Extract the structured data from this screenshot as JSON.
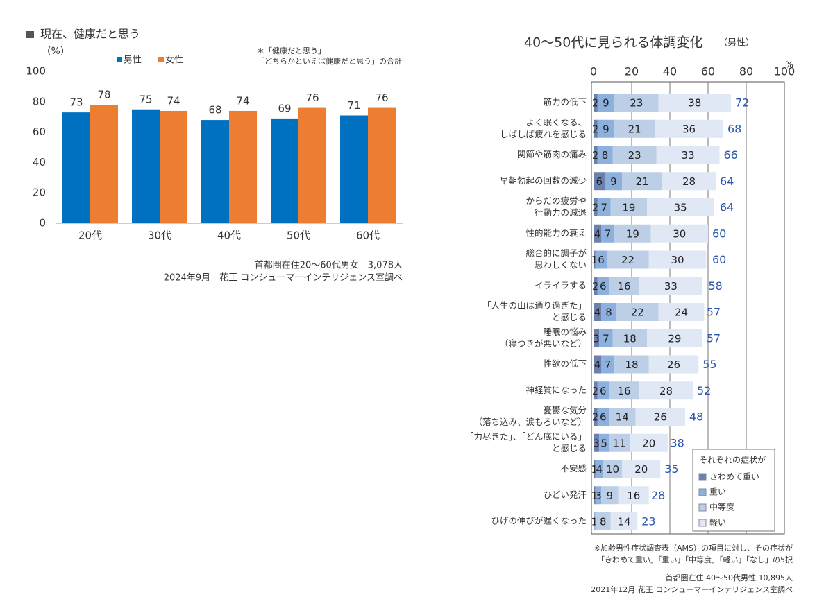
{
  "chart_data": [
    {
      "type": "bar",
      "title": "現在、健康だと思う",
      "y_label": "(%)",
      "note": [
        "＊「健康だと思う」",
        "「どちらかといえば健康だと思う」の合計"
      ],
      "source": [
        "首都圏在住20～60代男女　3,078人",
        "2024年9月　花王 コンシューマーインテリジェンス室調べ"
      ],
      "categories": [
        "20代",
        "30代",
        "40代",
        "50代",
        "60代"
      ],
      "series": [
        {
          "name": "男性",
          "color": "#0070c0",
          "values": [
            73,
            75,
            68,
            69,
            71
          ]
        },
        {
          "name": "女性",
          "color": "#ed7d31",
          "values": [
            78,
            74,
            74,
            76,
            76
          ]
        }
      ],
      "ylim": [
        0,
        100
      ],
      "yticks": [
        0,
        20,
        40,
        60,
        80,
        100
      ],
      "grid": false
    },
    {
      "type": "stacked_barh",
      "title": "40～50代に見られる体調変化",
      "subtitle": "（男性）",
      "x_label": "%",
      "categories": [
        [
          "筋力の低下"
        ],
        [
          "よく眠くなる、",
          "しばしば疲れを感じる"
        ],
        [
          "関節や筋肉の痛み"
        ],
        [
          "早朝勃起の回数の減少"
        ],
        [
          "からだの疲労や",
          "行動力の減退"
        ],
        [
          "性的能力の衰え"
        ],
        [
          "総合的に調子が",
          "思わしくない"
        ],
        [
          "イライラする"
        ],
        [
          "「人生の山は通り過ぎた」",
          "と感じる"
        ],
        [
          "睡眠の悩み",
          "（寝つきが悪いなど）"
        ],
        [
          "性欲の低下"
        ],
        [
          "神経質になった"
        ],
        [
          "憂鬱な気分",
          "（落ち込み、涙もろいなど）"
        ],
        [
          "「力尽きた」、「どん底にいる」",
          "と感じる"
        ],
        [
          "不安感"
        ],
        [
          "ひどい発汗"
        ],
        [
          "ひげの伸びが遅くなった"
        ]
      ],
      "series": [
        {
          "name": "きわめて重い",
          "color": "#6b80ad",
          "values": [
            2,
            2,
            2,
            6,
            2,
            4,
            1,
            2,
            4,
            3,
            4,
            2,
            2,
            3,
            1,
            1,
            null
          ]
        },
        {
          "name": "重い",
          "color": "#8eb0dc",
          "values": [
            9,
            9,
            8,
            9,
            7,
            7,
            6,
            6,
            8,
            7,
            7,
            6,
            6,
            5,
            4,
            3,
            1
          ]
        },
        {
          "name": "中等度",
          "color": "#bccfe6",
          "values": [
            23,
            21,
            23,
            21,
            19,
            19,
            22,
            16,
            22,
            18,
            18,
            16,
            14,
            11,
            10,
            9,
            8
          ]
        },
        {
          "name": "軽い",
          "color": "#dfe8f4",
          "values": [
            38,
            36,
            33,
            28,
            35,
            30,
            30,
            33,
            24,
            29,
            26,
            28,
            26,
            20,
            20,
            16,
            14
          ]
        }
      ],
      "totals": [
        72,
        68,
        66,
        64,
        64,
        60,
        60,
        58,
        57,
        57,
        55,
        52,
        48,
        38,
        35,
        28,
        23
      ],
      "legend_title": "それぞれの症状が",
      "xlim": [
        0,
        100
      ],
      "xticks": [
        0,
        20,
        40,
        60,
        80,
        100
      ],
      "grid": true,
      "note": [
        "※加齢男性症状調査表（AMS）の項目に対し、その症状が",
        "「きわめて重い」「重い」「中等度」「軽い」「なし」の5択"
      ],
      "source": [
        "首都圏在住 40～50代男性 10,895人",
        "2021年12月 花王 コンシューマーインテリジェンス室調べ"
      ]
    }
  ]
}
